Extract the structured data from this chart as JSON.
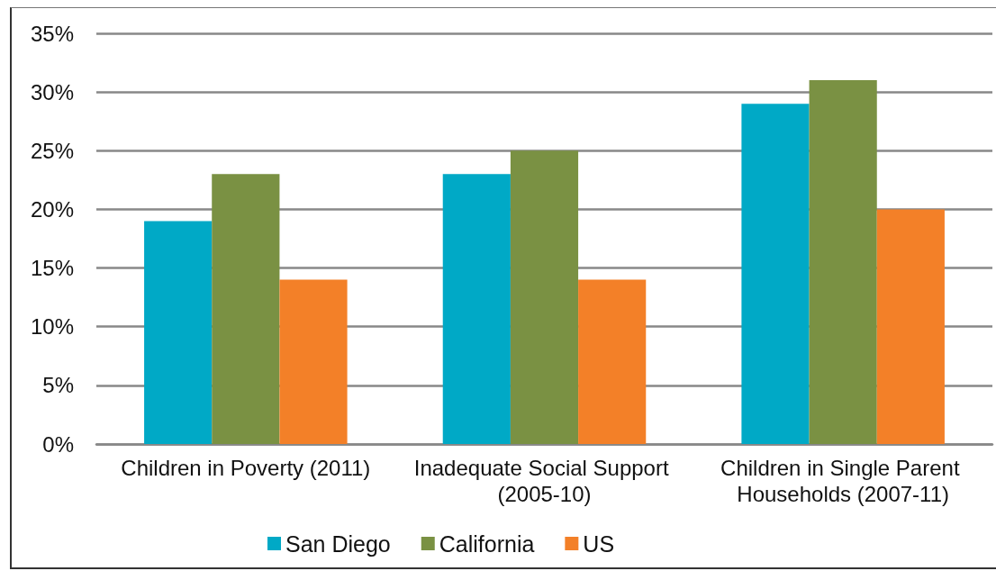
{
  "chart_data": {
    "type": "bar",
    "categories": [
      "Children in Poverty (2011)",
      "Inadequate Social Support (2005-10)",
      "Children in Single Parent Households (2007-11)"
    ],
    "series": [
      {
        "name": "San Diego",
        "color": "#00a9c6",
        "values": [
          19,
          23,
          29
        ]
      },
      {
        "name": "California",
        "color": "#7a9143",
        "values": [
          23,
          25,
          31
        ]
      },
      {
        "name": "US",
        "color": "#f38028",
        "values": [
          14,
          14,
          20
        ]
      }
    ],
    "ylim": [
      0,
      35
    ],
    "yticks": [
      {
        "value": 0,
        "label": "0%"
      },
      {
        "value": 5,
        "label": "5%"
      },
      {
        "value": 10,
        "label": "10%"
      },
      {
        "value": 15,
        "label": "15%"
      },
      {
        "value": 20,
        "label": "20%"
      },
      {
        "value": 25,
        "label": "25%"
      },
      {
        "value": 30,
        "label": "30%"
      },
      {
        "value": 35,
        "label": "35%"
      }
    ],
    "grid": "y",
    "legend": "bottom"
  }
}
